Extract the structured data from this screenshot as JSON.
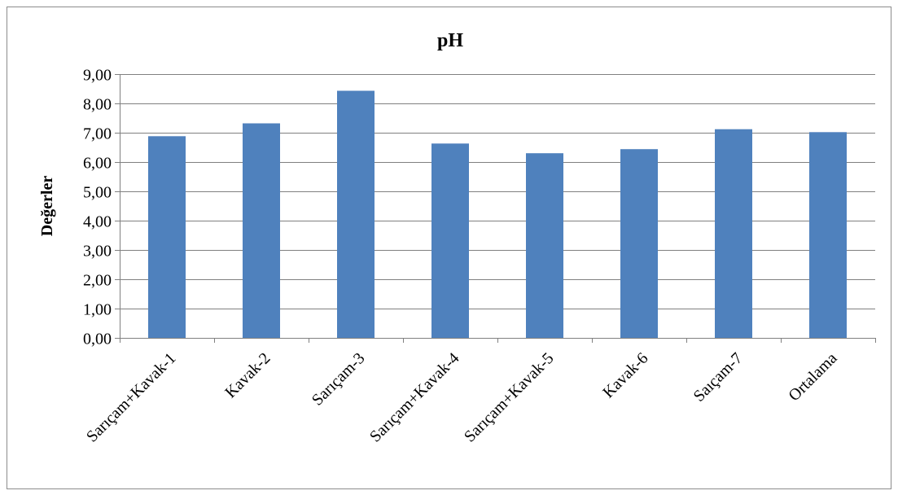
{
  "chart_data": {
    "type": "bar",
    "title": "pH",
    "xlabel": "",
    "ylabel": "Değerler",
    "categories": [
      "Sarıçam+Kavak-1",
      "Kavak-2",
      "Sarıçam-3",
      "Sarıçam+Kavak-4",
      "Sarıçam+Kavak-5",
      "Kavak-6",
      "Saıçam-7",
      "Ortalama"
    ],
    "values": [
      6.88,
      7.32,
      8.43,
      6.63,
      6.3,
      6.44,
      7.12,
      7.02
    ],
    "ylim": [
      0,
      9
    ],
    "yticks": [
      "0,00",
      "1,00",
      "2,00",
      "3,00",
      "4,00",
      "5,00",
      "6,00",
      "7,00",
      "8,00",
      "9,00"
    ],
    "grid": true,
    "legend": "none",
    "colors": {
      "bar": "#4f81bd",
      "grid": "#808080"
    }
  }
}
